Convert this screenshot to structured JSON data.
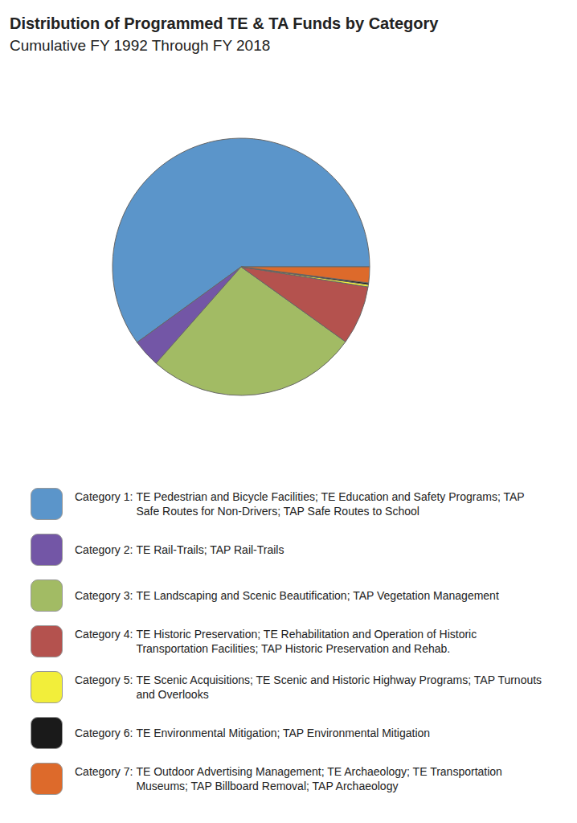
{
  "chart_data": {
    "type": "pie",
    "title": "Distribution of Programmed TE & TA Funds by Category",
    "subtitle": "Cumulative FY 1992 Through FY 2018",
    "categories": [
      "Category 1: TE Pedestrian and Bicycle Facilities; TE Education and Safety Programs; TAP Safe Routes for Non-Drivers; TAP Safe Routes to School",
      "Category 2: TE Rail-Trails; TAP Rail-Trails",
      "Category 3: TE Landscaping and Scenic Beautification; TAP Vegetation Management",
      "Category 4: TE Historic Preservation; TE Rehabilitation and Operation of Historic Transportation Facilities; TAP Historic Preservation and Rehab.",
      "Category 5: TE Scenic Acquisitions; TE Scenic and Historic Highway Programs; TAP Turnouts and Overlooks",
      "Category 6: TE Environmental Mitigation; TAP Environmental Mitigation",
      "Category 7: TE Outdoor Advertising Management; TE Archaeology; TE Transportation Museums; TAP Billboard Removal; TAP Archaeology"
    ],
    "values": [
      60,
      3.5,
      26.6,
      7.4,
      0.3,
      0.2,
      2
    ],
    "colors": [
      "#5b95ca",
      "#7356a6",
      "#a2bb64",
      "#b4524e",
      "#f2ee3a",
      "#1a1a1a",
      "#dd6a2b"
    ],
    "legend": "bottom"
  }
}
